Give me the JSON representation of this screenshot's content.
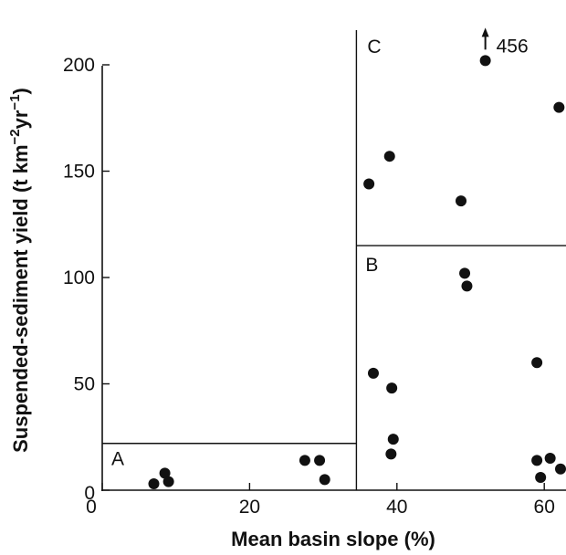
{
  "chart_data": {
    "type": "scatter",
    "title": "",
    "xlabel": "Mean basin slope (%)",
    "ylabel": "Suspended-sediment yield (t km",
    "ylabel_sup1": "−2",
    "ylabel_mid": "yr",
    "ylabel_sup2": "−1",
    "ylabel_end": ")",
    "xlim": [
      0,
      62.5
    ],
    "ylim": [
      0,
      215
    ],
    "x_ticks": [
      0,
      20,
      40,
      60
    ],
    "y_ticks": [
      0,
      50,
      100,
      150,
      200
    ],
    "x_tick_labels": [
      "0",
      "20",
      "40",
      "60"
    ],
    "y_tick_labels": [
      "0",
      "50",
      "100",
      "150",
      "200"
    ],
    "grid": false,
    "series": [
      {
        "x": [
          7,
          8.5,
          9,
          27.5,
          29.5,
          30.2,
          36.2,
          36.8,
          39,
          39.3,
          39.5,
          39.2,
          48.7,
          49.2,
          49.5,
          52,
          59,
          59,
          59.5,
          60.8,
          62,
          62.5
        ],
        "y": [
          3,
          8,
          4,
          14,
          14,
          5,
          144,
          55,
          157,
          48,
          24,
          17,
          136,
          102,
          96,
          202,
          60,
          14,
          6,
          15,
          180,
          10
        ]
      }
    ],
    "regions": [
      {
        "label": "A",
        "x_min": 0,
        "x_max": 34,
        "y_min": 0,
        "y_max": 22
      },
      {
        "label": "B",
        "x_min": 34,
        "x_max": 62.5,
        "y_min": 0,
        "y_max": 115
      },
      {
        "label": "C",
        "x_min": 34,
        "x_max": 62.5,
        "y_min": 115,
        "y_max": 215
      }
    ],
    "annotation": {
      "text": "456",
      "x": 52,
      "y": 202
    }
  }
}
